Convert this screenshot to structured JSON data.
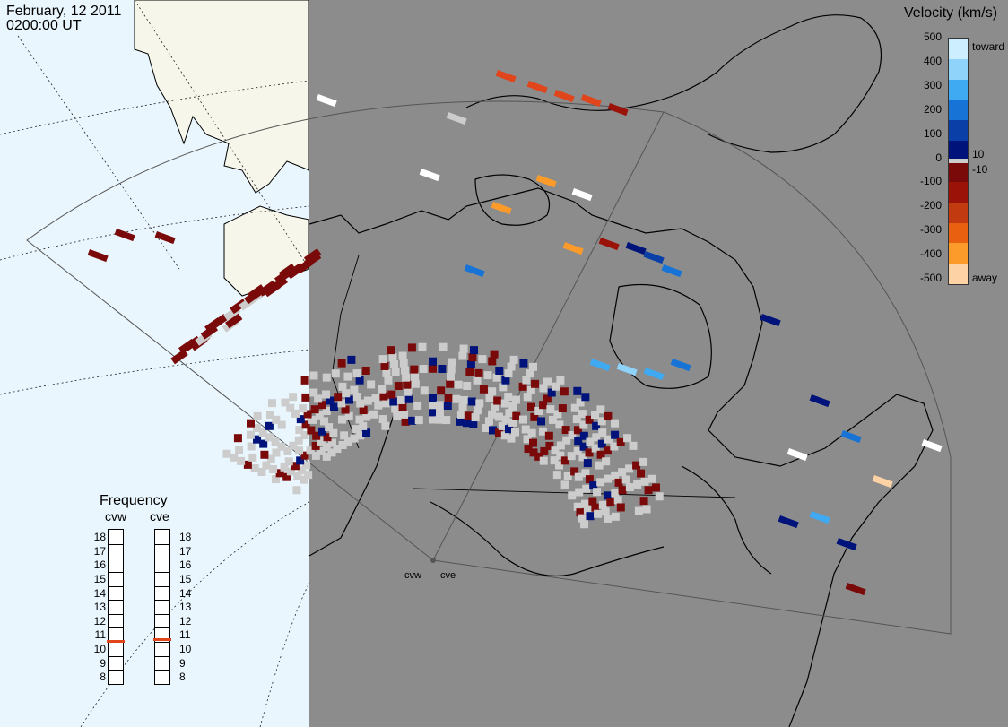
{
  "header": {
    "date": "February, 12 2011",
    "time": "0200:00 UT"
  },
  "colorbar": {
    "title": "Velocity (km/s)",
    "ticks": [
      "500",
      "400",
      "300",
      "200",
      "100",
      "0",
      "-100",
      "-200",
      "-300",
      "-400",
      "-500"
    ],
    "inner_ticks": [
      "10",
      "-10"
    ],
    "toward_label": "toward",
    "away_label": "away",
    "colors": [
      "#cdeefe",
      "#8fd3fb",
      "#3fa9f2",
      "#1774d6",
      "#0b3fa8",
      "#00137a",
      "#7a0a0a",
      "#9b1208",
      "#c23a10",
      "#e86010",
      "#fc9a2a",
      "#fdd3a5"
    ]
  },
  "frequency": {
    "title": "Frequency",
    "radars": [
      {
        "name": "cvw",
        "value": 10.6
      },
      {
        "name": "cve",
        "value": 10.7
      }
    ],
    "scale": [
      "18",
      "17",
      "16",
      "15",
      "14",
      "13",
      "12",
      "11",
      "10",
      "9",
      "8"
    ]
  },
  "sites": {
    "west": "cvw",
    "east": "cve"
  },
  "map_colors": {
    "ocean": "#eaf6fd",
    "land": "#f7f6ea",
    "shade": "#8c8c8c",
    "scatter": "#cccccc",
    "fov": "#555555"
  }
}
